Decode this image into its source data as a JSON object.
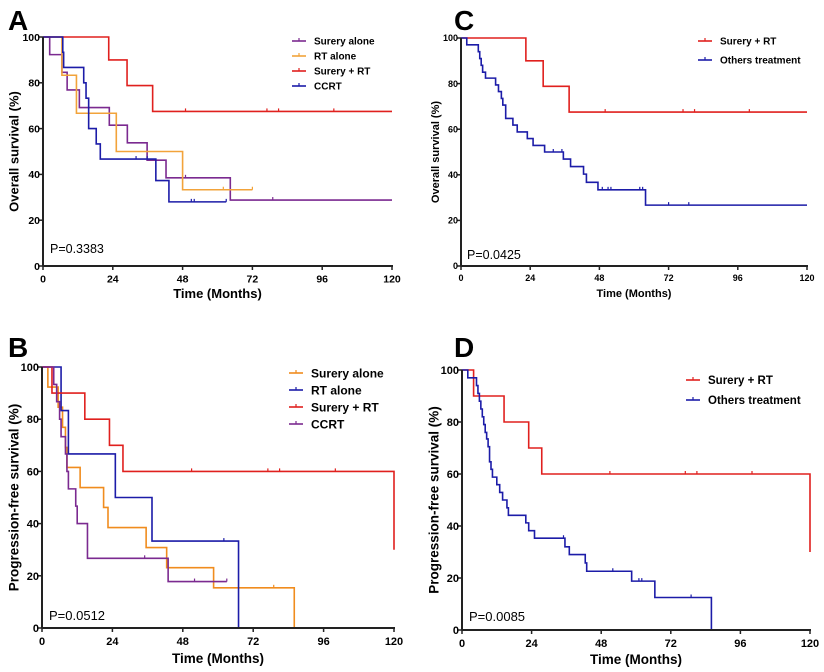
{
  "chart_data": [
    {
      "panel_label": "A",
      "type": "line",
      "step": true,
      "xlabel": "Time (Months)",
      "ylabel": "Overall survival (%)",
      "xlim": [
        0,
        120
      ],
      "ylim": [
        0,
        100
      ],
      "xticks": [
        0,
        24,
        48,
        72,
        96,
        120
      ],
      "yticks": [
        0,
        20,
        40,
        60,
        80,
        100
      ],
      "annotation": "P=0.3383",
      "legend_position": "top-right",
      "grid": false,
      "series": [
        {
          "name": "Surery alone",
          "color": "#7b2a90",
          "steps": [
            [
              2.3,
              92.3
            ],
            [
              6.5,
              84.6
            ],
            [
              8.3,
              76.9
            ],
            [
              12.5,
              69.2
            ],
            [
              22.8,
              61.5
            ],
            [
              29,
              53.8
            ],
            [
              35.8,
              46.2
            ],
            [
              42.3,
              38.5
            ],
            [
              64.4,
              28.8
            ]
          ],
          "censored": [
            49,
            79
          ],
          "end": 120
        },
        {
          "name": "RT alone",
          "color": "#f2a33a",
          "steps": [
            [
              6.5,
              83.3
            ],
            [
              11.5,
              66.7
            ],
            [
              25.2,
              50
            ],
            [
              48,
              33.3
            ]
          ],
          "censored": [
            62,
            72
          ],
          "end": 72
        },
        {
          "name": "Surery + RT",
          "color": "#e0201e",
          "steps": [
            [
              22.6,
              90
            ],
            [
              28.9,
              78.8
            ],
            [
              37.7,
              67.5
            ]
          ],
          "censored": [
            49,
            77,
            81,
            100
          ],
          "end": 120
        },
        {
          "name": "CCRT",
          "color": "#1c1ca8",
          "steps": [
            [
              6.8,
              93.3
            ],
            [
              7.1,
              86.7
            ],
            [
              14,
              80
            ],
            [
              14.8,
              73.3
            ],
            [
              15.7,
              60
            ],
            [
              18.3,
              53.3
            ],
            [
              19.7,
              46.7
            ],
            [
              38.8,
              37.3
            ],
            [
              43.3,
              28
            ]
          ],
          "censored": [
            32,
            35.8,
            51,
            52,
            63
          ],
          "end": 63
        }
      ]
    },
    {
      "panel_label": "B",
      "type": "line",
      "step": true,
      "xlabel": "Time (Months)",
      "ylabel": "Progression-free survival (%)",
      "xlim": [
        0,
        120
      ],
      "ylim": [
        0,
        100
      ],
      "xticks": [
        0,
        24,
        48,
        72,
        96,
        120
      ],
      "yticks": [
        0,
        20,
        40,
        60,
        80,
        100
      ],
      "annotation": "P=0.0512",
      "legend_position": "top-right",
      "grid": false,
      "series": [
        {
          "name": "Surery alone",
          "color": "#f08c1e",
          "steps": [
            [
              2,
              92.3
            ],
            [
              5.5,
              84.6
            ],
            [
              7,
              76.9
            ],
            [
              8,
              69.2
            ],
            [
              8.5,
              61.5
            ],
            [
              13,
              53.8
            ],
            [
              21,
              46.2
            ],
            [
              22.5,
              38.5
            ],
            [
              35.5,
              30.8
            ],
            [
              42.5,
              23.1
            ],
            [
              58.5,
              15.4
            ],
            [
              86,
              0
            ]
          ],
          "censored": [
            79
          ],
          "end": 86
        },
        {
          "name": "RT alone",
          "color": "#1c1ca8",
          "steps": [
            [
              6.5,
              83.3
            ],
            [
              9,
              66.7
            ],
            [
              25,
              50
            ],
            [
              37.5,
              33.3
            ],
            [
              67,
              0
            ]
          ],
          "censored": [
            62
          ],
          "end": 67
        },
        {
          "name": "Surery + RT",
          "color": "#e0201e",
          "steps": [
            [
              3.4,
              90
            ],
            [
              14.6,
              80
            ],
            [
              23,
              70
            ],
            [
              27.6,
              60
            ],
            [
              120,
              30
            ]
          ],
          "censored": [
            51,
            77,
            81,
            100
          ],
          "end": 120
        },
        {
          "name": "CCRT",
          "color": "#7b2a90",
          "steps": [
            [
              4,
              93.3
            ],
            [
              5,
              86.7
            ],
            [
              6,
              80
            ],
            [
              6.5,
              73.3
            ],
            [
              8,
              66.7
            ],
            [
              8.5,
              60
            ],
            [
              9,
              53.3
            ],
            [
              11.5,
              46.7
            ],
            [
              12,
              40
            ],
            [
              15.5,
              26.7
            ],
            [
              43,
              17.8
            ]
          ],
          "censored": [
            35,
            52,
            63
          ],
          "end": 63
        }
      ]
    },
    {
      "panel_label": "C",
      "type": "line",
      "step": true,
      "xlabel": "Time (Months)",
      "ylabel": "Overall survival (%)",
      "xlim": [
        0,
        120
      ],
      "ylim": [
        0,
        100
      ],
      "xticks": [
        0,
        24,
        48,
        72,
        96,
        120
      ],
      "yticks": [
        0,
        20,
        40,
        60,
        80,
        100
      ],
      "annotation": "P=0.0425",
      "legend_position": "top-right",
      "grid": false,
      "series": [
        {
          "name": "Surery + RT",
          "color": "#e0201e",
          "steps": [
            [
              22.5,
              90
            ],
            [
              28.5,
              78.8
            ],
            [
              37.5,
              67.5
            ]
          ],
          "censored": [
            50,
            77,
            81,
            100
          ],
          "end": 120
        },
        {
          "name": "Others treatment",
          "color": "#1c1ca8",
          "steps": [
            [
              2,
              97
            ],
            [
              6,
              94
            ],
            [
              6.5,
              91
            ],
            [
              7,
              88
            ],
            [
              7.5,
              85
            ],
            [
              8.5,
              82.4
            ],
            [
              12,
              79.4
            ],
            [
              13,
              76.5
            ],
            [
              14,
              73.5
            ],
            [
              14.5,
              70.6
            ],
            [
              15.5,
              64.7
            ],
            [
              18,
              61.8
            ],
            [
              19.5,
              58.8
            ],
            [
              23,
              55.9
            ],
            [
              25,
              52.9
            ],
            [
              29,
              50
            ],
            [
              35.5,
              46.9
            ],
            [
              38,
              43.6
            ],
            [
              42.5,
              40.3
            ],
            [
              43.5,
              36.7
            ],
            [
              47.5,
              33.4
            ],
            [
              64,
              26.7
            ]
          ],
          "censored": [
            32,
            35,
            49,
            51,
            52,
            62,
            63,
            72,
            79
          ],
          "end": 120
        }
      ]
    },
    {
      "panel_label": "D",
      "type": "line",
      "step": true,
      "xlabel": "Time (Months)",
      "ylabel": "Progression-free survival (%)",
      "xlim": [
        0,
        120
      ],
      "ylim": [
        0,
        100
      ],
      "xticks": [
        0,
        24,
        48,
        72,
        96,
        120
      ],
      "yticks": [
        0,
        20,
        40,
        60,
        80,
        100
      ],
      "annotation": "P=0.0085",
      "legend_position": "top-right",
      "grid": false,
      "series": [
        {
          "name": "Surery + RT",
          "color": "#e0201e",
          "steps": [
            [
              4,
              90
            ],
            [
              14.5,
              80
            ],
            [
              23,
              70
            ],
            [
              27.5,
              60
            ],
            [
              120,
              30
            ]
          ],
          "censored": [
            51,
            77,
            81,
            100
          ],
          "end": 120
        },
        {
          "name": "Others treatment",
          "color": "#1c1ca8",
          "steps": [
            [
              2,
              97
            ],
            [
              5,
              94
            ],
            [
              5.5,
              91
            ],
            [
              6,
              88
            ],
            [
              6.5,
              85
            ],
            [
              7,
              82
            ],
            [
              7.5,
              79
            ],
            [
              8,
              76
            ],
            [
              8.5,
              73.5
            ],
            [
              9,
              70.5
            ],
            [
              9.5,
              64.7
            ],
            [
              10,
              61.8
            ],
            [
              10.5,
              58.8
            ],
            [
              12,
              55.9
            ],
            [
              13,
              52.9
            ],
            [
              14,
              50
            ],
            [
              15.5,
              47
            ],
            [
              16,
              44.1
            ],
            [
              22,
              41.2
            ],
            [
              23,
              38.2
            ],
            [
              25,
              35.3
            ],
            [
              35.5,
              32
            ],
            [
              37,
              29
            ],
            [
              42.5,
              25.8
            ],
            [
              43,
              22.6
            ],
            [
              58.5,
              18.8
            ],
            [
              66.5,
              12.5
            ],
            [
              86,
              0
            ]
          ],
          "censored": [
            35,
            52,
            61,
            62,
            79
          ],
          "end": 86
        }
      ]
    }
  ]
}
